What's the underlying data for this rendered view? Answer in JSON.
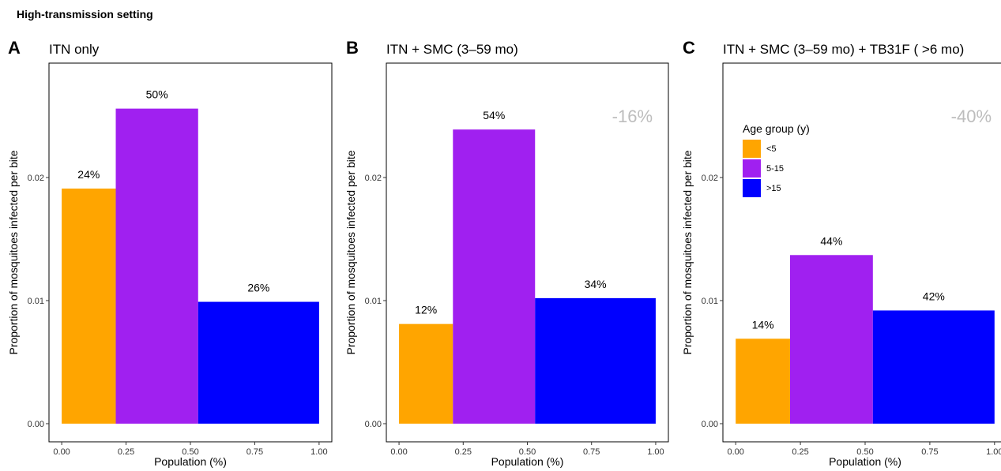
{
  "figure": {
    "title": "High-transmission setting"
  },
  "legend": {
    "title": "Age group (y)",
    "items": [
      {
        "label": "<5",
        "color": "#FFA500"
      },
      {
        "label": "5-15",
        "color": "#A020F0"
      },
      {
        "label": ">15",
        "color": "#0000FF"
      }
    ]
  },
  "chart_data": [
    {
      "type": "bar",
      "panel": "A",
      "title": "ITN only",
      "xlabel": "Population (%)",
      "ylabel": "Proportion of mosquitoes infected per bite",
      "xlim": [
        0,
        1
      ],
      "ylim": [
        0,
        0.0275
      ],
      "xticks": [
        "0.00",
        "0.25",
        "0.50",
        "0.75",
        "1.00"
      ],
      "yticks": [
        "0.00",
        "0.01",
        "0.02"
      ],
      "annotation": "",
      "bars": [
        {
          "group": "<5",
          "x0": 0.0,
          "x1": 0.21,
          "value": 0.0191,
          "label": "24%"
        },
        {
          "group": "5-15",
          "x0": 0.21,
          "x1": 0.53,
          "value": 0.0256,
          "label": "50%"
        },
        {
          "group": ">15",
          "x0": 0.53,
          "x1": 1.0,
          "value": 0.0099,
          "label": "26%"
        }
      ]
    },
    {
      "type": "bar",
      "panel": "B",
      "title": "ITN + SMC (3–59 mo)",
      "xlabel": "Population (%)",
      "ylabel": "Proportion of mosquitoes infected per bite",
      "xlim": [
        0,
        1
      ],
      "ylim": [
        0,
        0.0275
      ],
      "xticks": [
        "0.00",
        "0.25",
        "0.50",
        "0.75",
        "1.00"
      ],
      "yticks": [
        "0.00",
        "0.01",
        "0.02"
      ],
      "annotation": "-16%",
      "bars": [
        {
          "group": "<5",
          "x0": 0.0,
          "x1": 0.21,
          "value": 0.0081,
          "label": "12%"
        },
        {
          "group": "5-15",
          "x0": 0.21,
          "x1": 0.53,
          "value": 0.0239,
          "label": "54%"
        },
        {
          "group": ">15",
          "x0": 0.53,
          "x1": 1.0,
          "value": 0.0102,
          "label": "34%"
        }
      ]
    },
    {
      "type": "bar",
      "panel": "C",
      "title": "ITN + SMC (3–59 mo) + TB31F ( >6 mo)",
      "xlabel": "Population (%)",
      "ylabel": "Proportion of mosquitoes infected per bite",
      "xlim": [
        0,
        1
      ],
      "ylim": [
        0,
        0.0275
      ],
      "xticks": [
        "0.00",
        "0.25",
        "0.50",
        "0.75",
        "1.00"
      ],
      "yticks": [
        "0.00",
        "0.01",
        "0.02"
      ],
      "annotation": "-40%",
      "legend_position": "top-left",
      "bars": [
        {
          "group": "<5",
          "x0": 0.0,
          "x1": 0.21,
          "value": 0.0069,
          "label": "14%"
        },
        {
          "group": "5-15",
          "x0": 0.21,
          "x1": 0.53,
          "value": 0.0137,
          "label": "44%"
        },
        {
          "group": ">15",
          "x0": 0.53,
          "x1": 1.0,
          "value": 0.0092,
          "label": "42%"
        }
      ]
    }
  ]
}
